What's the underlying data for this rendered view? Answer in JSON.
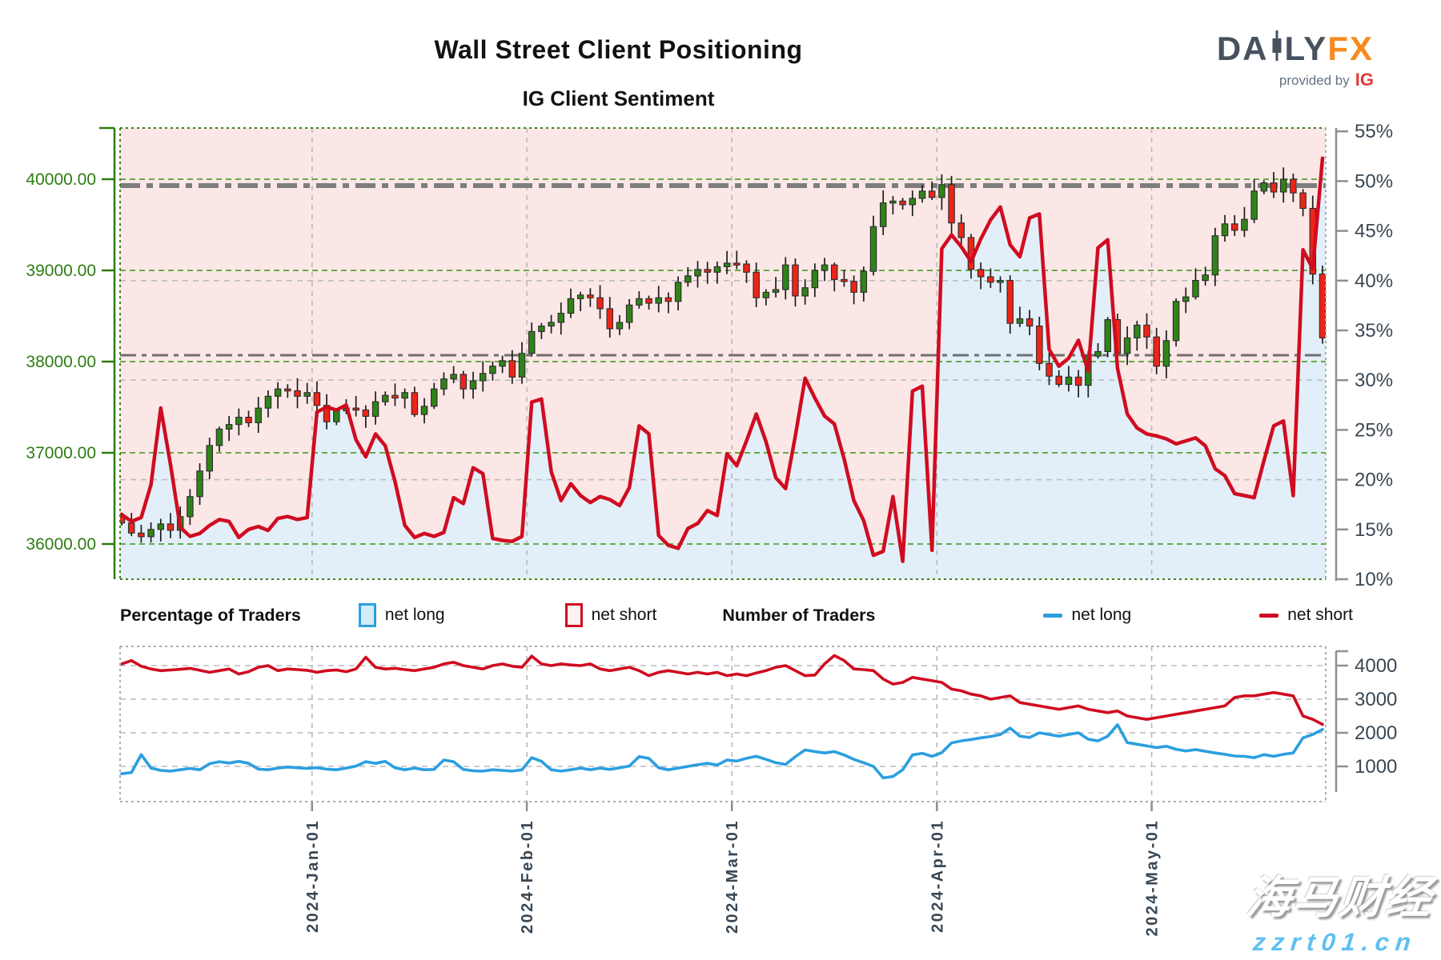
{
  "header": {
    "title": "Wall Street Client Positioning",
    "subtitle": "IG Client Sentiment"
  },
  "logo": {
    "part1": "DA",
    "part2": "LY",
    "part3": "FX",
    "provided_by": "provided by",
    "ig": "IG"
  },
  "legend": {
    "group1": "Percentage of Traders",
    "group2": "Number of Traders",
    "net_long": "net long",
    "net_short": "net short"
  },
  "watermark": {
    "line1": "海马财经",
    "line2": "zzrt01.cn"
  },
  "colors": {
    "pink_zone": "#fbe7e6",
    "blue_zone": "#e2eff9",
    "net_short_line": "#d00c20",
    "net_long_line": "#2b9fe0",
    "candle_up": "#2f8318",
    "candle_down": "#ee2418",
    "candle_stroke": "#2d2d2d",
    "price_axis_green": "#2d7c12",
    "grid_green": "#55a033",
    "grid_gray": "#bcbcbc",
    "level_gray": "#7d7d7d",
    "axis_text_dark": "#394754",
    "axis_line_gray": "#8f8f8f"
  },
  "chart_data": [
    {
      "type": "candlestick+line",
      "title": "IG Client Sentiment",
      "legend_position": "below",
      "grid": true,
      "price_axis": {
        "side": "left",
        "labels": [
          "40000.00",
          "39000.00",
          "38000.00",
          "37000.00",
          "36000.00"
        ],
        "values": [
          40000,
          39000,
          38000,
          37000,
          36000
        ]
      },
      "pct_axis": {
        "side": "right",
        "labels": [
          "55%",
          "50%",
          "45%",
          "40%",
          "35%",
          "30%",
          "25%",
          "20%",
          "15%",
          "10%"
        ],
        "values": [
          55,
          50,
          45,
          40,
          35,
          30,
          25,
          20,
          15,
          10
        ],
        "range": [
          10,
          55
        ],
        "gray_gridlines_pct": [
          40,
          30,
          20
        ]
      },
      "level_lines_price": [
        39930,
        38070
      ],
      "months": {
        "labels": [
          "2024-Jan-01",
          "2024-Feb-01",
          "2024-Mar-01",
          "2024-Apr-01",
          "2024-May-01"
        ],
        "indices": [
          19.5,
          41.5,
          62.5,
          83.5,
          105.5
        ]
      },
      "first_open": 36300,
      "closes": [
        36230,
        36120,
        36080,
        36160,
        36220,
        36150,
        36300,
        36520,
        36800,
        37080,
        37260,
        37310,
        37390,
        37330,
        37490,
        37620,
        37700,
        37680,
        37620,
        37660,
        37520,
        37340,
        37460,
        37490,
        37470,
        37400,
        37560,
        37630,
        37600,
        37660,
        37420,
        37510,
        37700,
        37810,
        37860,
        37700,
        37790,
        37870,
        37950,
        38010,
        37830,
        38090,
        38330,
        38390,
        38430,
        38530,
        38690,
        38730,
        38700,
        38580,
        38360,
        38430,
        38620,
        38690,
        38640,
        38700,
        38660,
        38870,
        38940,
        39010,
        38980,
        39040,
        39080,
        39070,
        38980,
        38700,
        38760,
        38790,
        39060,
        38720,
        38810,
        39000,
        39060,
        38900,
        38880,
        38760,
        38990,
        39480,
        39740,
        39760,
        39720,
        39790,
        39870,
        39800,
        39940,
        39520,
        39360,
        39010,
        38930,
        38870,
        38890,
        38420,
        38470,
        38390,
        37980,
        37840,
        37750,
        37830,
        37740,
        38060,
        38110,
        38460,
        38090,
        38260,
        38400,
        38270,
        37950,
        38230,
        38660,
        38710,
        38890,
        38950,
        39380,
        39510,
        39440,
        39560,
        39870,
        39960,
        39860,
        40000,
        39850,
        39680,
        38960,
        38260
      ],
      "sentiment_pct_net_long": [
        16.5,
        15.8,
        16.2,
        19.5,
        27.2,
        21.5,
        15.2,
        14.3,
        14.6,
        15.4,
        16.0,
        15.8,
        14.2,
        15.0,
        15.3,
        14.9,
        16.1,
        16.3,
        16.0,
        16.2,
        26.8,
        27.3,
        27.0,
        27.5,
        24.0,
        22.3,
        24.6,
        23.4,
        19.8,
        15.4,
        14.2,
        14.6,
        14.3,
        14.7,
        18.2,
        17.6,
        21.2,
        20.6,
        14.1,
        13.9,
        13.8,
        14.3,
        27.8,
        28.1,
        20.8,
        17.9,
        19.6,
        18.4,
        17.7,
        18.3,
        18.0,
        17.4,
        19.2,
        25.4,
        24.6,
        14.4,
        13.4,
        13.1,
        15.1,
        15.6,
        16.9,
        16.4,
        22.6,
        21.4,
        23.9,
        26.6,
        23.8,
        20.2,
        19.1,
        24.4,
        30.2,
        28.2,
        26.4,
        25.6,
        22.1,
        17.9,
        15.9,
        12.4,
        12.8,
        18.3,
        11.8,
        28.9,
        29.4,
        12.9,
        43.2,
        44.6,
        43.4,
        41.9,
        44.2,
        46.1,
        47.4,
        43.6,
        42.4,
        46.3,
        46.7,
        33.1,
        31.4,
        32.2,
        34.0,
        30.9,
        43.3,
        44.1,
        31.2,
        26.6,
        25.2,
        24.6,
        24.4,
        24.1,
        23.6,
        23.9,
        24.2,
        23.4,
        21.1,
        20.4,
        18.6,
        18.4,
        18.2,
        21.9,
        25.4,
        25.9,
        18.4,
        43.1,
        41.2,
        52.3
      ]
    },
    {
      "type": "line",
      "y_axis": {
        "side": "right",
        "labels": [
          "4000",
          "3000",
          "2000",
          "1000"
        ],
        "values": [
          4000,
          3000,
          2000,
          1000
        ]
      },
      "series": [
        {
          "name": "net long",
          "color": "#2b9fe0",
          "values": [
            780,
            820,
            1350,
            950,
            880,
            860,
            900,
            940,
            900,
            1080,
            1140,
            1100,
            1150,
            1090,
            920,
            900,
            950,
            980,
            960,
            940,
            960,
            920,
            900,
            950,
            1010,
            1140,
            1090,
            1150,
            960,
            900,
            950,
            900,
            910,
            1190,
            1140,
            910,
            870,
            860,
            900,
            880,
            860,
            900,
            1260,
            1150,
            900,
            860,
            900,
            950,
            900,
            950,
            910,
            960,
            1010,
            1290,
            1240,
            960,
            900,
            950,
            1000,
            1050,
            1090,
            1040,
            1190,
            1160,
            1240,
            1300,
            1210,
            1110,
            1060,
            1290,
            1490,
            1440,
            1400,
            1440,
            1340,
            1210,
            1110,
            1000,
            660,
            700,
            900,
            1340,
            1390,
            1300,
            1410,
            1700,
            1760,
            1800,
            1850,
            1890,
            1950,
            2140,
            1900,
            1860,
            2000,
            1950,
            1900,
            1950,
            2000,
            1810,
            1760,
            1900,
            2240,
            1710,
            1660,
            1610,
            1560,
            1600,
            1510,
            1460,
            1500,
            1450,
            1400,
            1360,
            1310,
            1300,
            1260,
            1350,
            1300,
            1360,
            1400,
            1850,
            1950,
            2100
          ]
        },
        {
          "name": "net short",
          "color": "#d00c20",
          "values": [
            4050,
            4150,
            3980,
            3900,
            3850,
            3870,
            3890,
            3920,
            3860,
            3800,
            3850,
            3900,
            3750,
            3820,
            3950,
            4000,
            3850,
            3900,
            3880,
            3860,
            3800,
            3850,
            3870,
            3820,
            3900,
            4250,
            3950,
            3900,
            3920,
            3880,
            3850,
            3900,
            3950,
            4050,
            4100,
            4000,
            3950,
            3900,
            4000,
            4050,
            3980,
            3950,
            4280,
            4050,
            4000,
            4050,
            4020,
            4000,
            4050,
            3900,
            3850,
            3900,
            3950,
            3850,
            3700,
            3800,
            3850,
            3800,
            3750,
            3800,
            3750,
            3800,
            3700,
            3750,
            3700,
            3780,
            3850,
            3950,
            4000,
            3850,
            3700,
            3720,
            4050,
            4300,
            4150,
            3900,
            3880,
            3850,
            3600,
            3450,
            3500,
            3650,
            3600,
            3550,
            3500,
            3300,
            3250,
            3150,
            3100,
            3000,
            3050,
            3100,
            2900,
            2850,
            2800,
            2750,
            2700,
            2750,
            2800,
            2700,
            2650,
            2600,
            2650,
            2500,
            2450,
            2400,
            2450,
            2500,
            2550,
            2600,
            2650,
            2700,
            2750,
            2800,
            3050,
            3100,
            3100,
            3150,
            3200,
            3150,
            3100,
            2500,
            2400,
            2250
          ]
        }
      ]
    }
  ]
}
